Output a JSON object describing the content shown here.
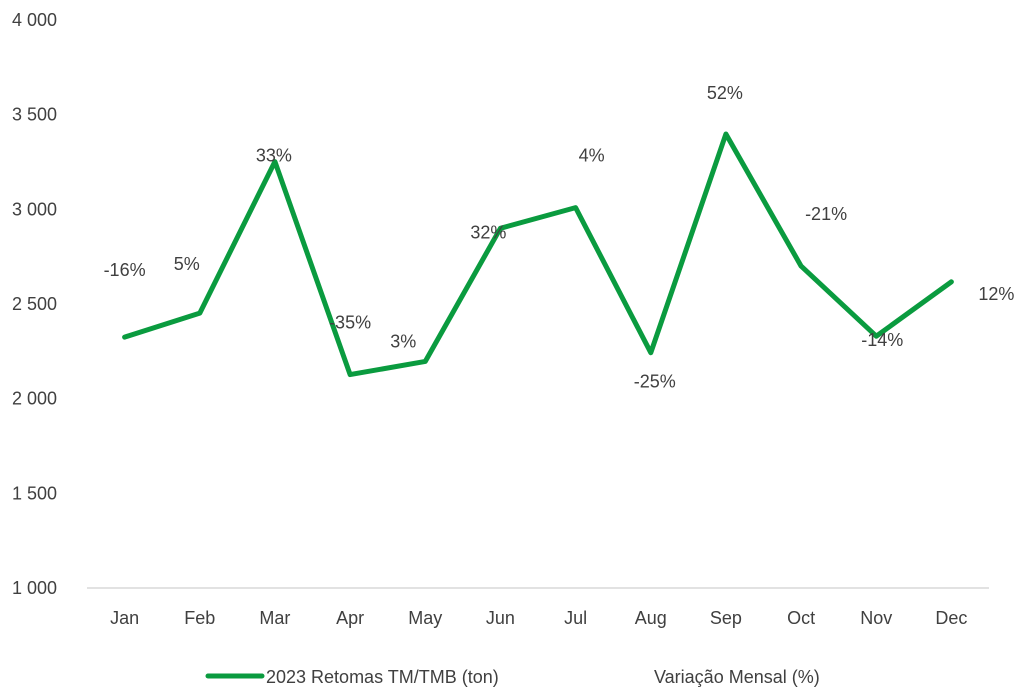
{
  "chart_data": {
    "type": "line",
    "categories": [
      "Jan",
      "Feb",
      "Mar",
      "Apr",
      "May",
      "Jun",
      "Jul",
      "Aug",
      "Sep",
      "Oct",
      "Nov",
      "Dec"
    ],
    "series": [
      {
        "name": "2023 Retomas TM/TMB (ton)",
        "color": "#0a9b3f",
        "values": [
          2325,
          2452,
          3252,
          2127,
          2197,
          2900,
          3009,
          2243,
          3398,
          2700,
          2330,
          2617
        ]
      }
    ],
    "data_labels": [
      "-16%",
      "5%",
      "33%",
      "-35%",
      "3%",
      "32%",
      "4%",
      "-25%",
      "52%",
      "-21%",
      "-14%",
      "12%"
    ],
    "secondary_legend": "Variação Mensal (%)",
    "y_ticks": [
      "1 000",
      "1 500",
      "2 000",
      "2 500",
      "3 000",
      "3 500",
      "4 000"
    ],
    "ylim": [
      1000,
      4000
    ],
    "grid": false,
    "legend_position": "bottom"
  }
}
